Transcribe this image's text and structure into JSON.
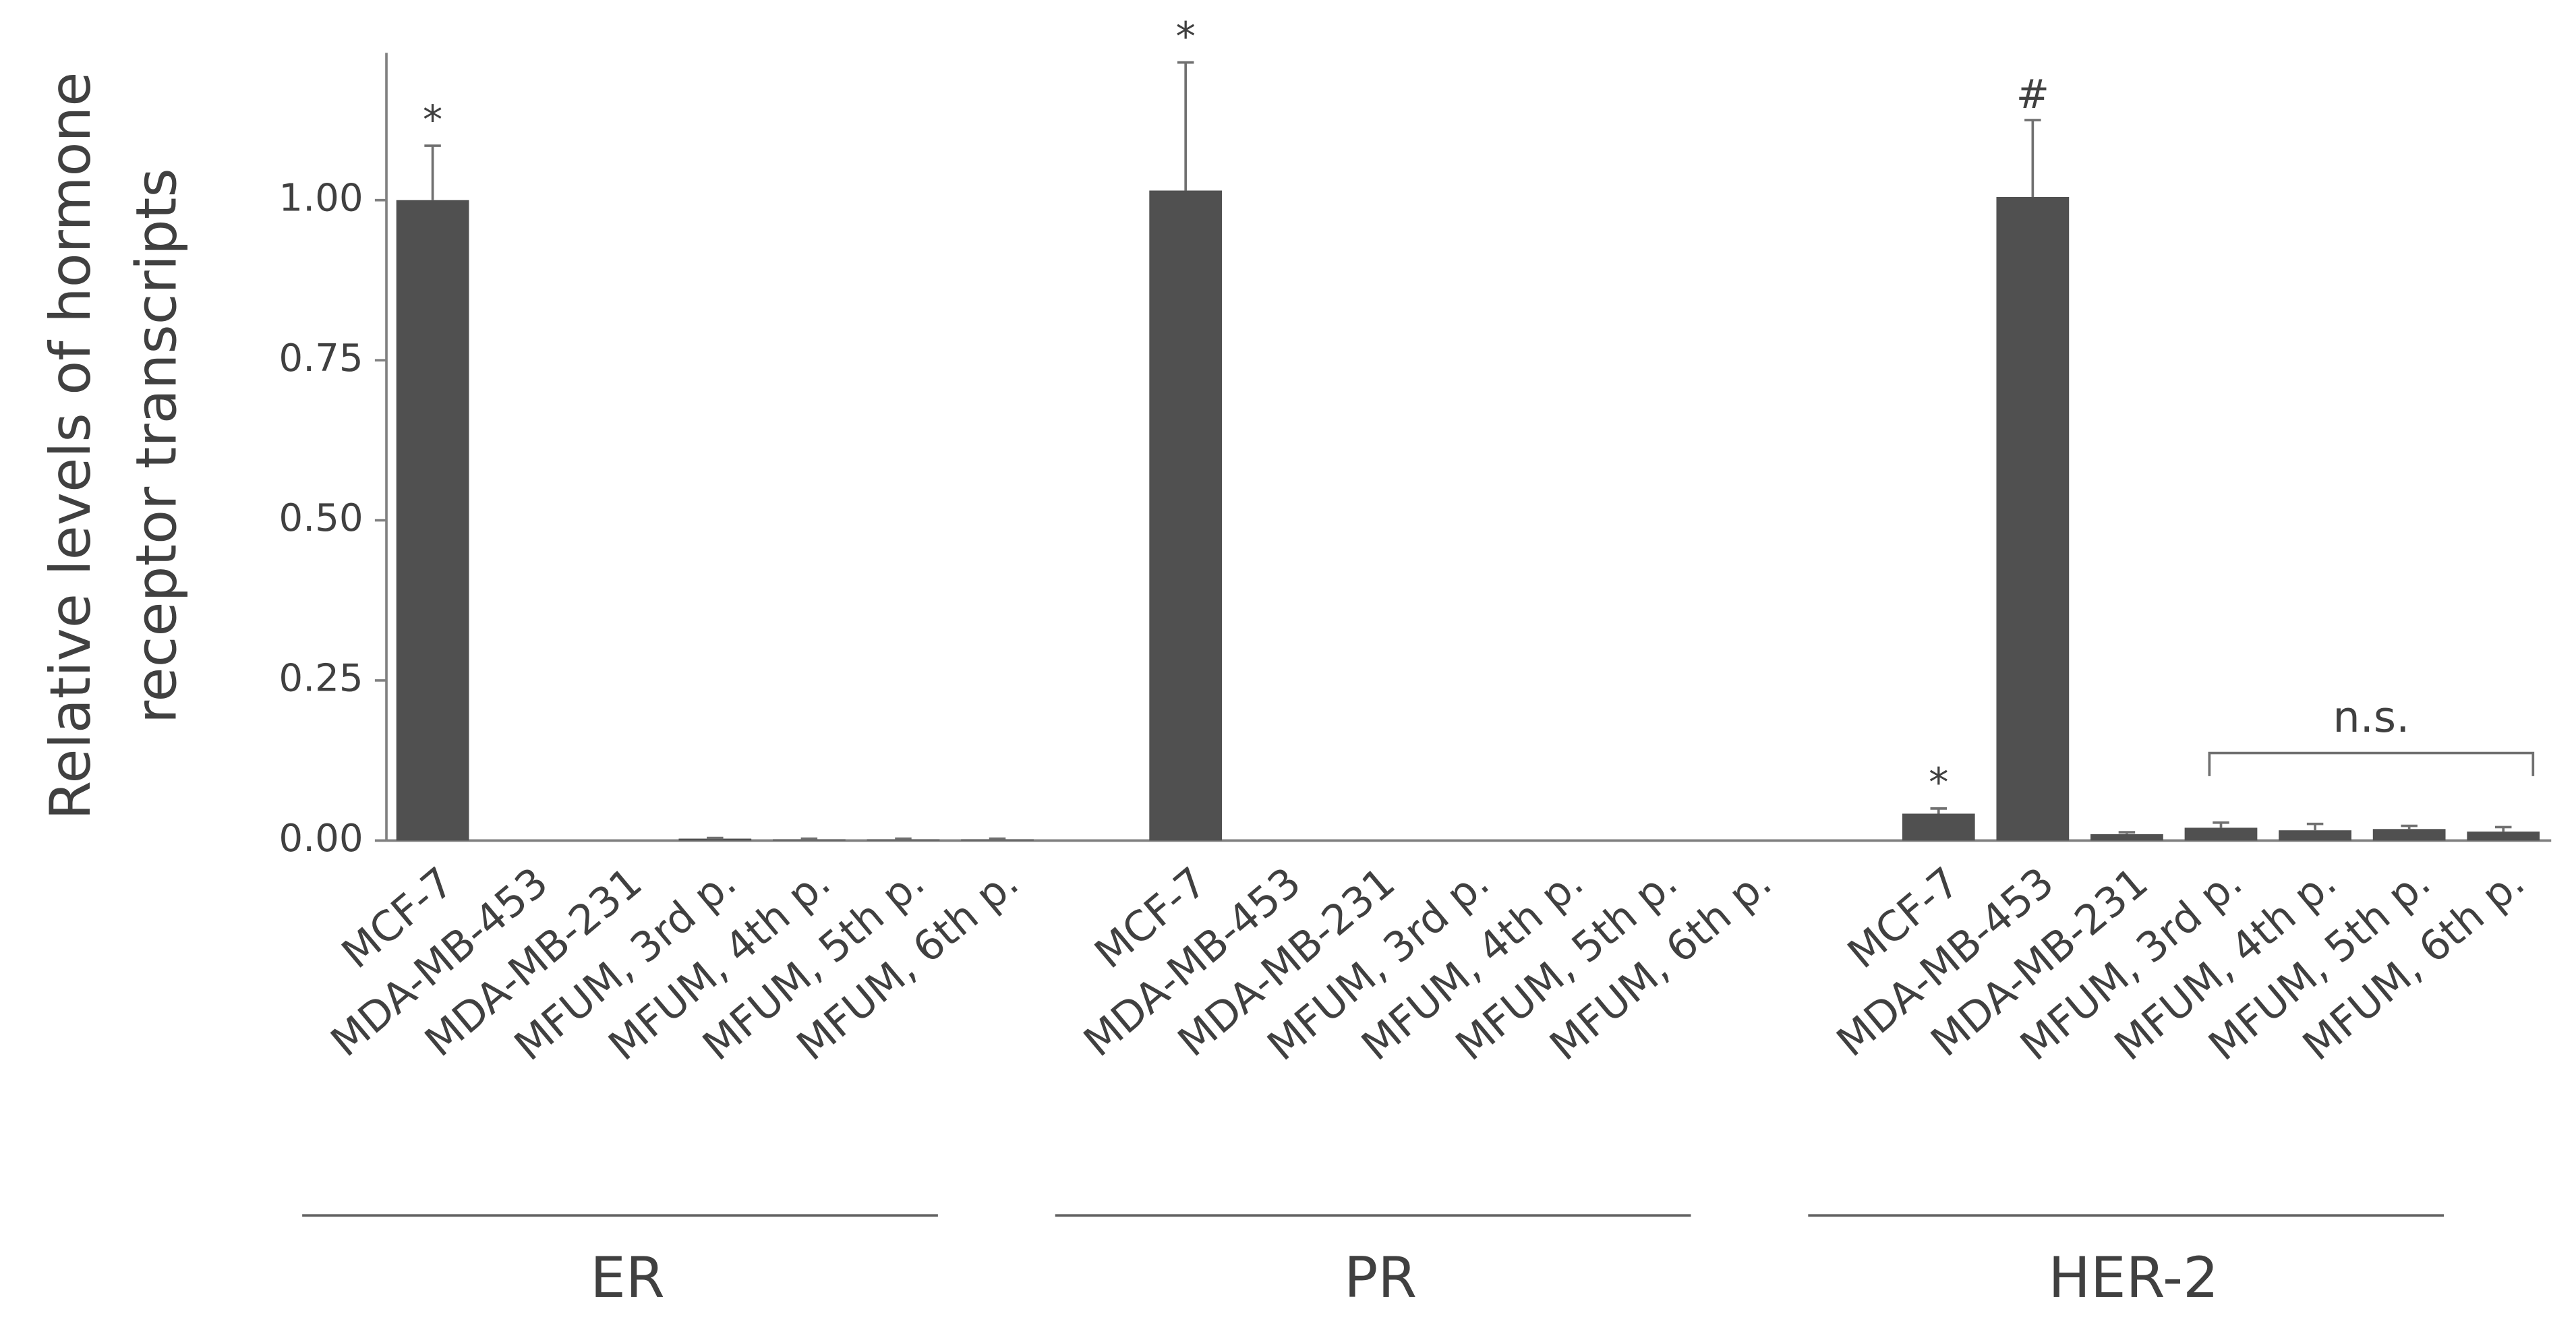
{
  "chart_data": {
    "type": "bar",
    "color": "#505050",
    "ylabel": [
      "Relative levels of hormone",
      "receptor transcripts"
    ],
    "ylim": [
      0,
      1.23
    ],
    "yticks": [
      {
        "value": 0,
        "label": "0.00"
      },
      {
        "value": 0.25,
        "label": "0.25"
      },
      {
        "value": 0.5,
        "label": "0.50"
      },
      {
        "value": 0.75,
        "label": "0.75"
      },
      {
        "value": 1,
        "label": "1.00"
      }
    ],
    "groups": [
      {
        "name": "ER",
        "categories": [
          "MCF-7",
          "MDA-MB-453",
          "MDA-MB-231",
          "MFUM, 3rd p.",
          "MFUM, 4th p.",
          "MFUM, 5th p.",
          "MFUM, 6th p."
        ],
        "values": [
          1.0,
          0,
          0,
          0.003,
          0.002,
          0.002,
          0.002
        ],
        "errors": [
          0.085,
          0,
          0,
          0.001,
          0.001,
          0.001,
          0.001
        ],
        "markers": [
          "*",
          null,
          null,
          null,
          null,
          null,
          null
        ]
      },
      {
        "name": "PR",
        "categories": [
          "MCF-7",
          "MDA-MB-453",
          "MDA-MB-231",
          "MFUM, 3rd p.",
          "MFUM, 4th p.",
          "MFUM, 5th p.",
          "MFUM, 6th p."
        ],
        "values": [
          1.015,
          0,
          0,
          0,
          0,
          0,
          0
        ],
        "errors": [
          0.2,
          0,
          0,
          0,
          0,
          0,
          0
        ],
        "markers": [
          "*",
          null,
          null,
          null,
          null,
          null,
          null
        ]
      },
      {
        "name": "HER-2",
        "categories": [
          "MCF-7",
          "MDA-MB-453",
          "MDA-MB-231",
          "MFUM, 3rd p.",
          "MFUM, 4th p.",
          "MFUM, 5th p.",
          "MFUM, 6th p."
        ],
        "values": [
          0.042,
          1.005,
          0.01,
          0.02,
          0.016,
          0.018,
          0.014
        ],
        "errors": [
          0.008,
          0.12,
          0.003,
          0.008,
          0.01,
          0.005,
          0.007
        ],
        "markers": [
          "*",
          "#",
          null,
          null,
          null,
          null,
          null
        ],
        "bracket": {
          "label": "n.s.",
          "from": "MFUM, 3rd p.",
          "to": "MFUM, 6th p."
        }
      }
    ]
  }
}
